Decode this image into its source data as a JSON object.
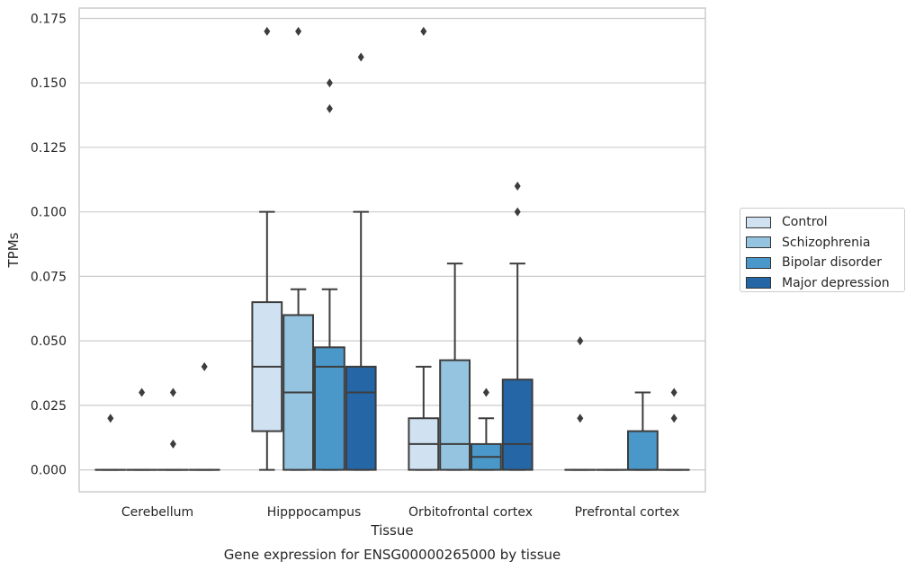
{
  "chart_data": {
    "type": "box",
    "title": "",
    "caption": "Gene expression for ENSG00000265000 by tissue",
    "xlabel": "Tissue",
    "ylabel": "TPMs",
    "ylim": [
      -0.0085,
      0.179
    ],
    "yticks": [
      0.0,
      0.025,
      0.05,
      0.075,
      0.1,
      0.125,
      0.15,
      0.175
    ],
    "ytick_labels": [
      "0.000",
      "0.025",
      "0.050",
      "0.075",
      "0.100",
      "0.125",
      "0.150",
      "0.175"
    ],
    "grid": true,
    "legend_position": "right",
    "categories": [
      "Cerebellum",
      "Hipppocampus",
      "Orbitofrontal cortex",
      "Prefrontal cortex"
    ],
    "series": [
      {
        "name": "Control",
        "color": "#d0e1f2",
        "boxes": [
          {
            "q1": 0.0,
            "median": 0.0,
            "q3": 0.0,
            "whislo": 0.0,
            "whishi": 0.0,
            "fliers": [
              0.02
            ]
          },
          {
            "q1": 0.015,
            "median": 0.04,
            "q3": 0.065,
            "whislo": 0.0,
            "whishi": 0.1,
            "fliers": [
              0.17
            ]
          },
          {
            "q1": 0.0,
            "median": 0.01,
            "q3": 0.02,
            "whislo": 0.0,
            "whishi": 0.04,
            "fliers": [
              0.17
            ]
          },
          {
            "q1": 0.0,
            "median": 0.0,
            "q3": 0.0,
            "whislo": 0.0,
            "whishi": 0.0,
            "fliers": [
              0.05,
              0.02
            ]
          }
        ]
      },
      {
        "name": "Schizophrenia",
        "color": "#94c4df",
        "boxes": [
          {
            "q1": 0.0,
            "median": 0.0,
            "q3": 0.0,
            "whislo": 0.0,
            "whishi": 0.0,
            "fliers": [
              0.03
            ]
          },
          {
            "q1": 0.0,
            "median": 0.03,
            "q3": 0.06,
            "whislo": 0.0,
            "whishi": 0.07,
            "fliers": [
              0.17
            ]
          },
          {
            "q1": 0.0,
            "median": 0.01,
            "q3": 0.0425,
            "whislo": 0.0,
            "whishi": 0.08,
            "fliers": []
          },
          {
            "q1": 0.0,
            "median": 0.0,
            "q3": 0.0,
            "whislo": 0.0,
            "whishi": 0.0,
            "fliers": []
          }
        ]
      },
      {
        "name": "Bipolar disorder",
        "color": "#4a98c9",
        "boxes": [
          {
            "q1": 0.0,
            "median": 0.0,
            "q3": 0.0,
            "whislo": 0.0,
            "whishi": 0.0,
            "fliers": [
              0.03,
              0.01
            ]
          },
          {
            "q1": 0.0,
            "median": 0.04,
            "q3": 0.0475,
            "whislo": 0.0,
            "whishi": 0.07,
            "fliers": [
              0.15,
              0.14
            ]
          },
          {
            "q1": 0.0,
            "median": 0.005,
            "q3": 0.01,
            "whislo": 0.0,
            "whishi": 0.02,
            "fliers": [
              0.03
            ]
          },
          {
            "q1": 0.0,
            "median": 0.0,
            "q3": 0.015,
            "whislo": 0.0,
            "whishi": 0.03,
            "fliers": []
          }
        ]
      },
      {
        "name": "Major depression",
        "color": "#2466a6",
        "boxes": [
          {
            "q1": 0.0,
            "median": 0.0,
            "q3": 0.0,
            "whislo": 0.0,
            "whishi": 0.0,
            "fliers": [
              0.04
            ]
          },
          {
            "q1": 0.0,
            "median": 0.03,
            "q3": 0.04,
            "whislo": 0.0,
            "whishi": 0.1,
            "fliers": [
              0.16
            ]
          },
          {
            "q1": 0.0,
            "median": 0.01,
            "q3": 0.035,
            "whislo": 0.0,
            "whishi": 0.08,
            "fliers": [
              0.11,
              0.1
            ]
          },
          {
            "q1": 0.0,
            "median": 0.0,
            "q3": 0.0,
            "whislo": 0.0,
            "whishi": 0.0,
            "fliers": [
              0.03,
              0.02
            ]
          }
        ]
      }
    ]
  }
}
